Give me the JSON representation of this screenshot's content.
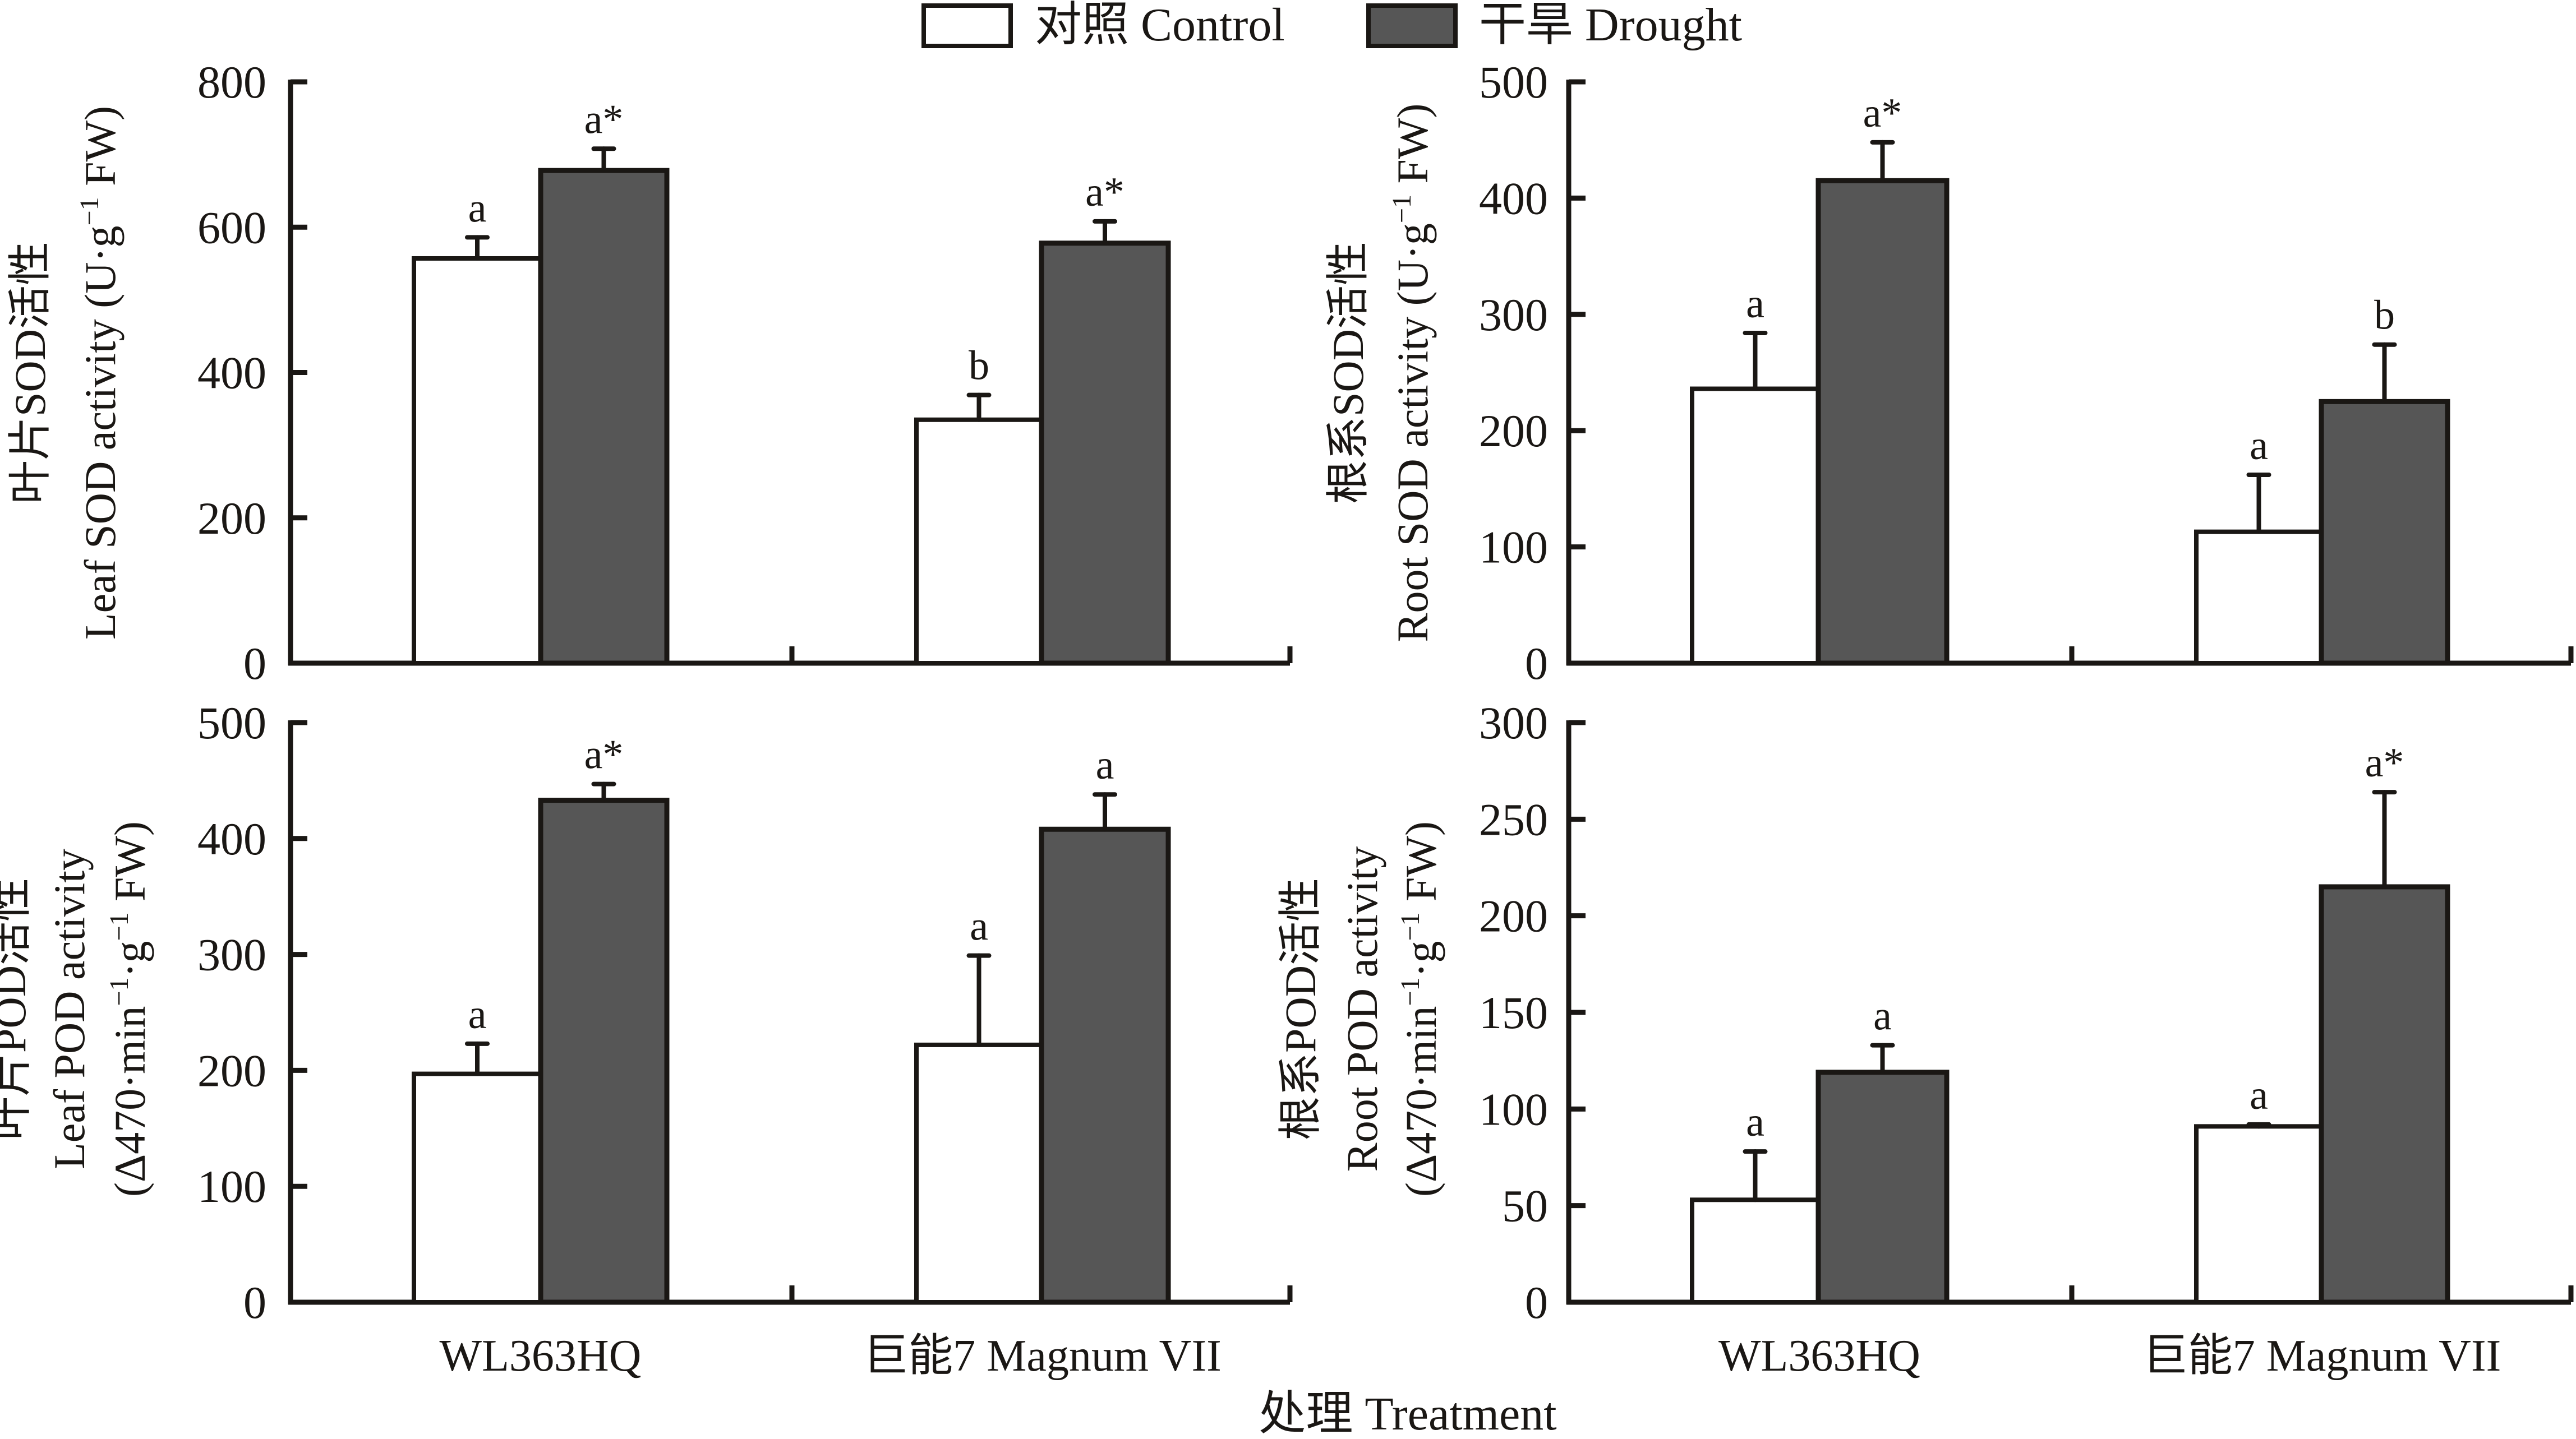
{
  "legend": {
    "items": [
      {
        "label": "对照 Control",
        "color": "#ffffff"
      },
      {
        "label": "干旱 Drought",
        "color": "#565656"
      }
    ]
  },
  "xlabel": "处理 Treatment",
  "chart_data": [
    {
      "type": "bar",
      "id": "leaf-sod",
      "title": "",
      "ylabel_lines": [
        "叶片SOD活性",
        "Leaf SOD activity (U·g⁻¹ FW)"
      ],
      "ylabel_zh": "叶片SOD活性",
      "ylabel_en_parts": [
        "Leaf SOD activity (U·g",
        "−1",
        " FW)"
      ],
      "xlabel": "",
      "categories": [
        "WL363HQ",
        "巨能7 Magnum VII"
      ],
      "ylim": [
        0,
        800
      ],
      "yticks": [
        0,
        200,
        400,
        600,
        800
      ],
      "grid": false,
      "series": [
        {
          "name": "对照 Control",
          "values": [
            557,
            335
          ],
          "errors": [
            29,
            34
          ],
          "labels": [
            "a",
            "b"
          ]
        },
        {
          "name": "干旱 Drought",
          "values": [
            678,
            578
          ],
          "errors": [
            30,
            30
          ],
          "labels": [
            "a*",
            "a*"
          ]
        }
      ]
    },
    {
      "type": "bar",
      "id": "root-sod",
      "title": "",
      "ylabel_zh": "根系SOD活性",
      "ylabel_en_parts": [
        "Root SOD activity (U·g",
        "−1",
        " FW)"
      ],
      "xlabel": "",
      "categories": [
        "WL363HQ",
        "巨能7 Magnum VII"
      ],
      "ylim": [
        0,
        500
      ],
      "yticks": [
        0,
        100,
        200,
        300,
        400,
        500
      ],
      "grid": false,
      "series": [
        {
          "name": "对照 Control",
          "values": [
            236,
            113
          ],
          "errors": [
            48,
            49
          ],
          "labels": [
            "a",
            "a"
          ]
        },
        {
          "name": "干旱 Drought",
          "values": [
            415,
            225
          ],
          "errors": [
            33,
            49
          ],
          "labels": [
            "a*",
            "b"
          ]
        }
      ]
    },
    {
      "type": "bar",
      "id": "leaf-pod",
      "title": "",
      "ylabel_zh": "叶片POD活性",
      "ylabel_en_line2": "Leaf POD activity",
      "ylabel_en_parts": [
        "(Δ470·min",
        "−1",
        "·g",
        "−1",
        " FW)"
      ],
      "xlabel": "",
      "categories": [
        "WL363HQ",
        "巨能7 Magnum VII"
      ],
      "ylim": [
        0,
        500
      ],
      "yticks": [
        0,
        100,
        200,
        300,
        400,
        500
      ],
      "grid": false,
      "series": [
        {
          "name": "对照 Control",
          "values": [
            197,
            222
          ],
          "errors": [
            26,
            77
          ],
          "labels": [
            "a",
            "a"
          ]
        },
        {
          "name": "干旱 Drought",
          "values": [
            433,
            408
          ],
          "errors": [
            14,
            30
          ],
          "labels": [
            "a*",
            "a"
          ]
        }
      ]
    },
    {
      "type": "bar",
      "id": "root-pod",
      "title": "",
      "ylabel_zh": "根系POD活性",
      "ylabel_en_line2": "Root POD activity",
      "ylabel_en_parts": [
        "(Δ470·min",
        "−1",
        "·g",
        "−1",
        " FW)"
      ],
      "xlabel": "",
      "categories": [
        "WL363HQ",
        "巨能7 Magnum VII"
      ],
      "ylim": [
        0,
        300
      ],
      "yticks": [
        0,
        50,
        100,
        150,
        200,
        250,
        300
      ],
      "grid": false,
      "series": [
        {
          "name": "对照 Control",
          "values": [
            53,
            91
          ],
          "errors": [
            25,
            1
          ],
          "labels": [
            "a",
            "a"
          ]
        },
        {
          "name": "干旱 Drought",
          "values": [
            119,
            215
          ],
          "errors": [
            14,
            49
          ],
          "labels": [
            "a",
            "a*"
          ]
        }
      ]
    }
  ]
}
